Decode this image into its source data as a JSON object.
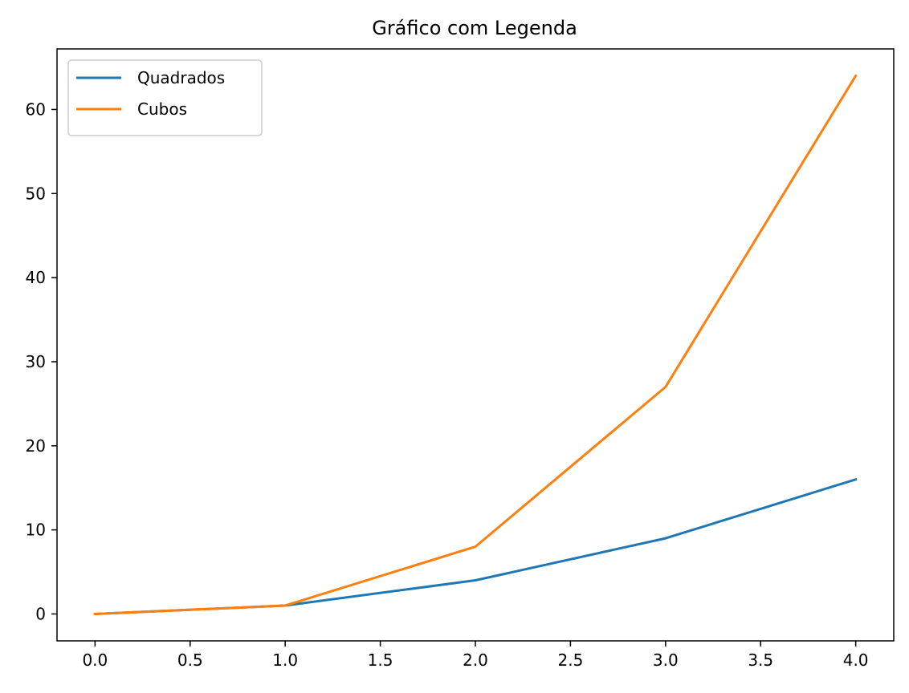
{
  "chart_data": {
    "type": "line",
    "title": "Gráfico com Legenda",
    "xlabel": "",
    "ylabel": "",
    "x": [
      0,
      1,
      2,
      3,
      4
    ],
    "series": [
      {
        "name": "Quadrados",
        "values": [
          0,
          1,
          4,
          9,
          16
        ],
        "color": "#1f77b4"
      },
      {
        "name": "Cubos",
        "values": [
          0,
          1,
          8,
          27,
          64
        ],
        "color": "#ff7f0e"
      }
    ],
    "xlim": [
      -0.2,
      4.2
    ],
    "ylim": [
      -3.2,
      67.2
    ],
    "xticks": [
      0.0,
      0.5,
      1.0,
      1.5,
      2.0,
      2.5,
      3.0,
      3.5,
      4.0
    ],
    "xtick_labels": [
      "0.0",
      "0.5",
      "1.0",
      "1.5",
      "2.0",
      "2.5",
      "3.0",
      "3.5",
      "4.0"
    ],
    "yticks": [
      0,
      10,
      20,
      30,
      40,
      50,
      60
    ],
    "ytick_labels": [
      "0",
      "10",
      "20",
      "30",
      "40",
      "50",
      "60"
    ],
    "grid": false,
    "legend": "upper-left"
  }
}
